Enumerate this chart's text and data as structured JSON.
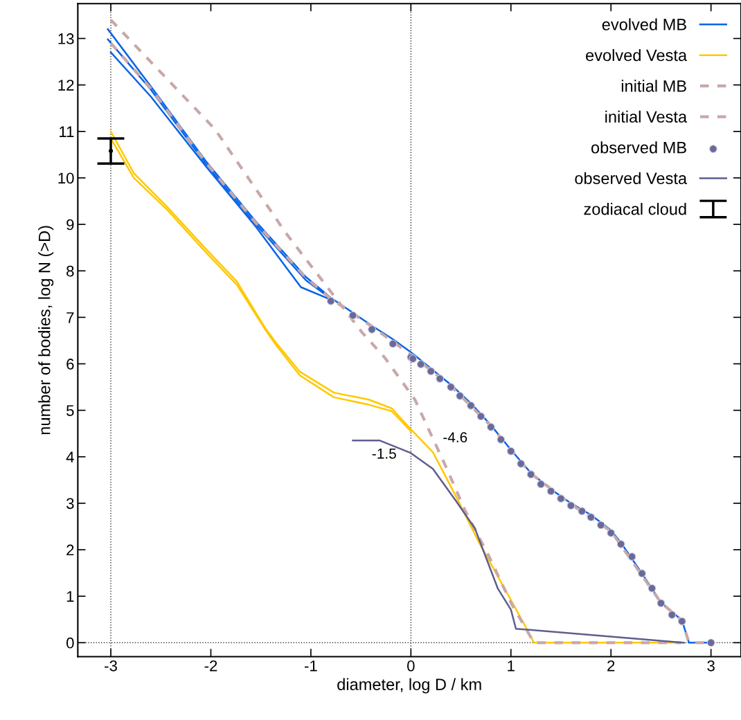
{
  "chart_data": {
    "type": "line",
    "xlabel": "diameter, log D / km",
    "ylabel": "number of bodies, log N (>D)",
    "xlim": [
      -3.33,
      3.3
    ],
    "ylim": [
      -0.3,
      13.75
    ],
    "xticks": [
      -3,
      -2,
      -1,
      0,
      1,
      2,
      3
    ],
    "yticks": [
      0,
      1,
      2,
      3,
      4,
      5,
      6,
      7,
      8,
      9,
      10,
      11,
      12,
      13
    ],
    "grid": false,
    "legend": "top right",
    "series": [
      {
        "name": "evolved MB",
        "color": "#0a64e6",
        "line_style": "solid",
        "marker": "none",
        "x": [
          -3.03,
          -2.59,
          -2.05,
          -1.55,
          -1.05,
          -0.8,
          -0.58,
          -0.39,
          -0.18,
          0.0,
          0.2,
          0.4,
          0.6,
          0.8,
          1.0,
          1.2,
          1.4,
          1.6,
          1.8,
          2.0,
          2.1,
          2.3,
          2.5,
          2.71,
          2.78,
          3.0
        ],
        "values": [
          13.2,
          11.94,
          10.36,
          9.06,
          7.87,
          7.42,
          7.1,
          6.82,
          6.53,
          6.25,
          5.9,
          5.55,
          5.15,
          4.68,
          4.15,
          3.65,
          3.3,
          3.0,
          2.75,
          2.42,
          2.15,
          1.52,
          0.87,
          0.48,
          0.0,
          0.0
        ]
      },
      {
        "color": "#0a64e6",
        "line_style": "solid",
        "marker": "none",
        "x": [
          -3.03,
          -2.6,
          -2.05,
          -1.55,
          -1.05,
          -0.8
        ],
        "values": [
          12.98,
          11.9,
          10.3,
          9.0,
          7.8,
          7.4
        ]
      },
      {
        "color": "#0a64e6",
        "line_style": "solid",
        "marker": "none",
        "x": [
          -3.0,
          -2.6,
          -2.05,
          -1.55,
          -1.1,
          -0.8
        ],
        "values": [
          12.7,
          11.75,
          10.25,
          8.95,
          7.65,
          7.38
        ]
      },
      {
        "name": "evolved Vesta",
        "color": "#ffc800",
        "line_style": "solid",
        "marker": "none",
        "x": [
          -3.0,
          -2.77,
          -2.43,
          -2.05,
          -1.74,
          -1.46,
          -1.34,
          -1.11,
          -0.77,
          -0.42,
          -0.19,
          0.0,
          0.22,
          0.45,
          0.68,
          0.91,
          1.14,
          1.23,
          2.7
        ],
        "values": [
          11.0,
          10.1,
          9.36,
          8.47,
          7.77,
          6.78,
          6.43,
          5.83,
          5.38,
          5.23,
          5.04,
          4.59,
          4.1,
          3.15,
          2.16,
          1.27,
          0.37,
          0.0,
          0.0
        ]
      },
      {
        "color": "#ffc800",
        "line_style": "solid",
        "marker": "none",
        "x": [
          -3.0,
          -2.77,
          -2.43,
          -2.05,
          -1.74,
          -1.46,
          -1.34,
          -1.11,
          -0.77,
          -0.42,
          -0.19,
          0.0
        ],
        "values": [
          10.85,
          10.0,
          9.3,
          8.4,
          7.7,
          6.75,
          6.38,
          5.75,
          5.28,
          5.12,
          4.98,
          4.55
        ]
      },
      {
        "name": "initial MB",
        "color": "#c8a8a8",
        "line_style": "dashed",
        "marker": "none",
        "x": [
          -3.0,
          -2.59,
          -2.05,
          -1.55,
          -1.05,
          -0.8,
          -0.39,
          0.0,
          0.4,
          0.8,
          1.2,
          1.6,
          2.0,
          2.5,
          2.71,
          2.78,
          3.0
        ],
        "values": [
          12.9,
          11.9,
          10.33,
          9.03,
          7.85,
          7.4,
          6.8,
          6.2,
          5.52,
          4.66,
          3.64,
          2.98,
          2.4,
          0.86,
          0.48,
          0.0,
          0.0
        ]
      },
      {
        "name": "initial Vesta",
        "color": "#c8a8a8",
        "line_style": "dashed",
        "marker": "none",
        "x": [
          -3.0,
          -1.96,
          -1.34,
          -1.27,
          -0.49,
          -0.26,
          0.04,
          0.36,
          0.54,
          0.78,
          1.0,
          1.23,
          2.7
        ],
        "values": [
          13.4,
          11.05,
          9.1,
          8.87,
          6.68,
          6.13,
          5.23,
          3.74,
          2.85,
          1.86,
          0.86,
          0.0,
          0.0
        ]
      },
      {
        "name": "observed MB",
        "type": "scatter",
        "color": "#6a6a9a",
        "marker": "circle",
        "x": [
          -0.8,
          -0.58,
          -0.39,
          -0.18,
          0.0,
          0.02,
          0.1,
          0.2,
          0.29,
          0.4,
          0.49,
          0.6,
          0.7,
          0.8,
          0.9,
          1.0,
          1.1,
          1.2,
          1.3,
          1.4,
          1.5,
          1.6,
          1.71,
          1.8,
          1.9,
          2.0,
          2.1,
          2.21,
          2.31,
          2.41,
          2.5,
          2.61,
          2.71,
          3.0
        ],
        "values": [
          7.35,
          7.04,
          6.74,
          6.43,
          6.14,
          6.11,
          5.99,
          5.84,
          5.68,
          5.5,
          5.31,
          5.1,
          4.87,
          4.64,
          4.37,
          4.12,
          3.85,
          3.62,
          3.41,
          3.26,
          3.1,
          2.95,
          2.83,
          2.7,
          2.53,
          2.36,
          2.12,
          1.85,
          1.49,
          1.17,
          0.85,
          0.6,
          0.46,
          0.0
        ]
      },
      {
        "name": "observed Vesta",
        "color": "#5e5e8e",
        "line_style": "solid",
        "marker": "none",
        "x": [
          -0.58,
          -0.31,
          0.0,
          0.22,
          0.45,
          0.64,
          0.71,
          0.87,
          1.0,
          1.05,
          2.73
        ],
        "values": [
          4.35,
          4.35,
          4.08,
          3.74,
          3.05,
          2.46,
          2.06,
          1.16,
          0.71,
          0.3,
          0.0
        ]
      },
      {
        "name": "zodiacal cloud",
        "type": "scatter",
        "color": "#000000",
        "x": [
          -3.0
        ],
        "values": [
          10.58
        ],
        "errors": [
          0.27
        ]
      }
    ],
    "ref_lines": [
      {
        "axis": "x",
        "value": -3,
        "color": "#000000",
        "line_style": "dotted"
      },
      {
        "axis": "x",
        "value": 0,
        "color": "#000000",
        "line_style": "dotted"
      },
      {
        "axis": "y",
        "value": 0,
        "color": "#000000",
        "line_style": "dotted"
      }
    ],
    "annotations": [
      "-4.6",
      "-1.5"
    ]
  }
}
